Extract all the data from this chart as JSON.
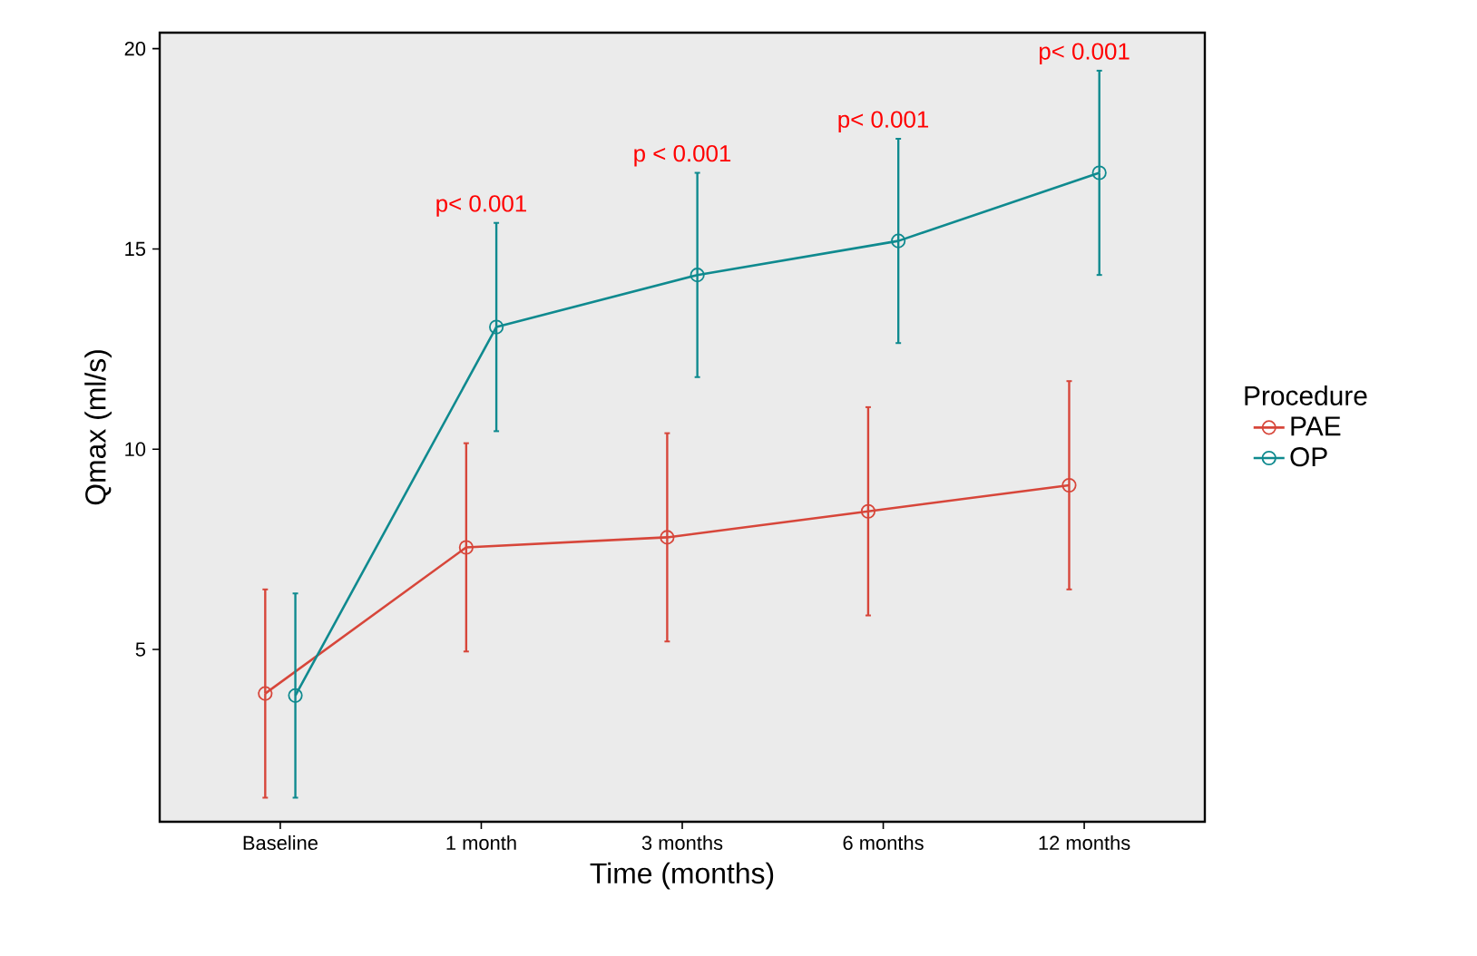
{
  "chart_data": {
    "type": "line",
    "xlabel": "Time (months)",
    "ylabel": "Qmax (ml/s)",
    "legend_title": "Procedure",
    "categories": [
      "Baseline",
      "1 month",
      "3 months",
      "6 months",
      "12 months"
    ],
    "series": [
      {
        "name": "PAE",
        "color": "#d7463a",
        "values": [
          3.9,
          7.55,
          7.8,
          8.45,
          9.1
        ],
        "errors": [
          2.6,
          2.6,
          2.6,
          2.6,
          2.6
        ]
      },
      {
        "name": "OP",
        "color": "#0f8a8f",
        "values": [
          3.85,
          13.05,
          14.35,
          15.2,
          16.9
        ],
        "errors": [
          2.55,
          2.6,
          2.55,
          2.55,
          2.55
        ]
      }
    ],
    "ylim": [
      0.7,
      20.4
    ],
    "yticks": [
      5,
      10,
      15,
      20
    ],
    "annotations": [
      "p< 0.001",
      "p < 0.001",
      "p< 0.001",
      "p< 0.001"
    ],
    "legend": "right",
    "marker": "circle",
    "line_style": "solid"
  }
}
